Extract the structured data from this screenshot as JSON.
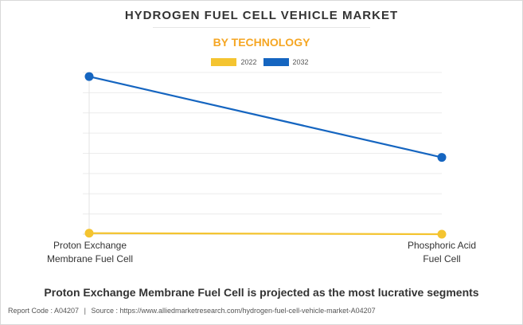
{
  "header": {
    "title": "HYDROGEN FUEL CELL VEHICLE MARKET",
    "subtitle": "BY TECHNOLOGY"
  },
  "legend": [
    {
      "label": "2022",
      "color": "#f4c430"
    },
    {
      "label": "2032",
      "color": "#1565c0"
    }
  ],
  "chart_data": {
    "type": "line",
    "title": "HYDROGEN FUEL CELL VEHICLE MARKET",
    "subtitle": "BY TECHNOLOGY",
    "categories": [
      "Proton Exchange Membrane Fuel Cell",
      "Phosphoric Acid Fuel Cell"
    ],
    "category_lines": [
      [
        "Proton Exchange",
        "Membrane Fuel Cell"
      ],
      [
        "Phosphoric Acid",
        "Fuel Cell"
      ]
    ],
    "series": [
      {
        "name": "2022",
        "color": "#f4c430",
        "values": [
          0.05,
          0.0
        ]
      },
      {
        "name": "2032",
        "color": "#1565c0",
        "values": [
          7.8,
          3.8
        ]
      }
    ],
    "ylim": [
      0,
      8
    ],
    "y_gridlines": 8,
    "xlabel": "",
    "ylabel": "",
    "grid": true,
    "legend_position": "top-center"
  },
  "headline": "Proton Exchange Membrane Fuel Cell is projected as the most lucrative segments",
  "footer": {
    "report_code": "Report Code : A04207",
    "separator": "|",
    "source": "Source : https://www.alliedmarketresearch.com/hydrogen-fuel-cell-vehicle-market-A04207"
  }
}
